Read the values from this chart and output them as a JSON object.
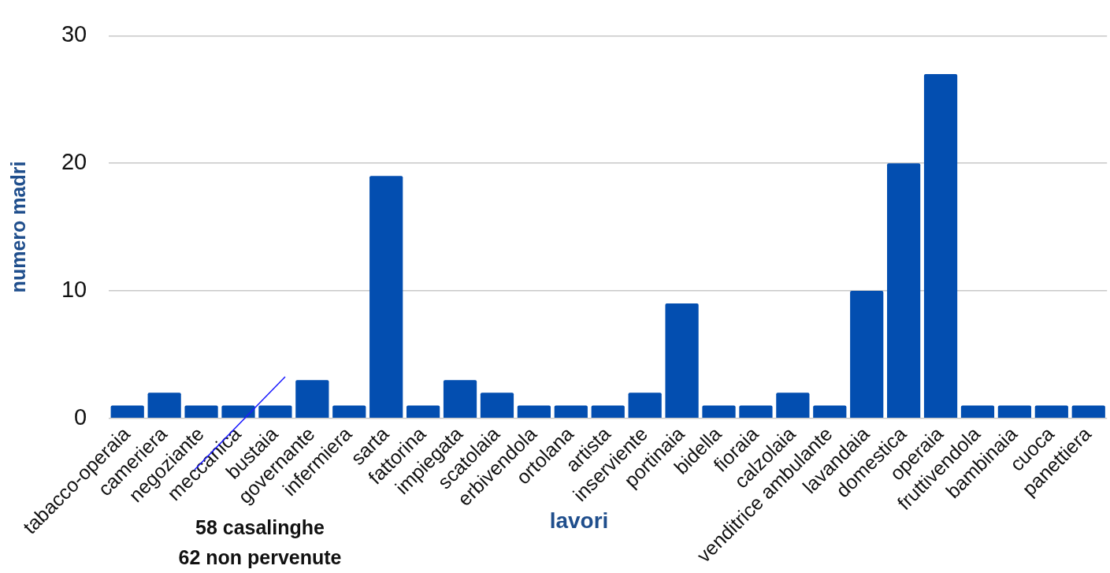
{
  "chart_data": {
    "type": "bar",
    "xlabel": "lavori",
    "ylabel": "numero madri",
    "categories": [
      "tabacco-operaia",
      "cameriera",
      "negoziante",
      "meccanica",
      "bustaia",
      "governante",
      "infermiera",
      "sarta",
      "fattorina",
      "impiegata",
      "scatolaia",
      "erbivendola",
      "ortolana",
      "artista",
      "inserviente",
      "portinaia",
      "bidella",
      "fioraia",
      "calzolaia",
      "venditrice ambulante",
      "lavandaia",
      "domestica",
      "operaia",
      "fruttivendola",
      "bambinaia",
      "cuoca",
      "panettiera"
    ],
    "values": [
      1,
      2,
      1,
      1,
      1,
      3,
      1,
      19,
      1,
      3,
      2,
      1,
      1,
      1,
      2,
      9,
      1,
      1,
      2,
      1,
      10,
      20,
      27,
      1,
      1,
      1,
      1
    ],
    "color": "#034eb0",
    "ylim": [
      0,
      30
    ],
    "yticks": [
      0,
      10,
      20,
      30
    ],
    "grid": "y",
    "legend": false,
    "annotations": [
      "58 casalinghe",
      "62 non pervenute"
    ]
  }
}
